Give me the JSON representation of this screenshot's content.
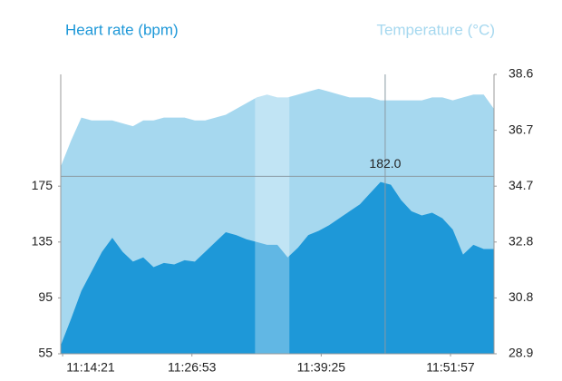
{
  "chart_data": {
    "type": "area",
    "title_left": "Heart rate (bpm)",
    "title_right": "Temperature (°C)",
    "x": [
      "11:14:10",
      "11:15:10",
      "11:16:10",
      "11:17:10",
      "11:18:10",
      "11:19:10",
      "11:20:10",
      "11:21:10",
      "11:22:10",
      "11:23:10",
      "11:24:10",
      "11:25:10",
      "11:26:10",
      "11:27:10",
      "11:28:10",
      "11:29:10",
      "11:30:10",
      "11:31:10",
      "11:32:10",
      "11:33:10",
      "11:34:10",
      "11:35:10",
      "11:36:10",
      "11:37:10",
      "11:38:10",
      "11:39:10",
      "11:40:10",
      "11:41:10",
      "11:42:10",
      "11:43:10",
      "11:44:10",
      "11:45:10",
      "11:46:10",
      "11:47:10",
      "11:48:10",
      "11:49:10",
      "11:50:10",
      "11:51:10",
      "11:52:10",
      "11:53:10",
      "11:54:10",
      "11:55:10",
      "11:56:10"
    ],
    "series": [
      {
        "name": "Heart rate",
        "color": "#1e98d8",
        "axis": "y",
        "values": [
          61,
          80,
          100,
          114,
          128,
          138,
          128,
          121,
          124,
          117,
          120,
          119,
          122,
          121,
          128,
          135,
          142,
          140,
          137,
          135,
          133,
          133,
          124,
          131,
          140,
          143,
          147,
          152,
          157,
          162,
          170,
          178,
          176,
          165,
          157,
          154,
          156,
          152,
          144,
          126,
          133,
          130,
          130
        ]
      },
      {
        "name": "Temperature",
        "color": "#a6d8ef",
        "axis": "y2",
        "values": [
          35.4,
          36.3,
          37.1,
          37.0,
          37.0,
          37.0,
          36.9,
          36.8,
          37.0,
          37.0,
          37.1,
          37.1,
          37.1,
          37.0,
          37.0,
          37.1,
          37.2,
          37.4,
          37.6,
          37.8,
          37.9,
          37.8,
          37.8,
          37.9,
          38.0,
          38.1,
          38.0,
          37.9,
          37.8,
          37.8,
          37.8,
          37.7,
          37.7,
          37.7,
          37.7,
          37.7,
          37.8,
          37.8,
          37.7,
          37.8,
          37.9,
          37.9,
          37.4
        ]
      }
    ],
    "xlim": [
      "11:14:10",
      "11:56:10"
    ],
    "xticks": [
      "11:14:21",
      "11:26:53",
      "11:39:25",
      "11:51:57"
    ],
    "ylim": [
      55,
      255
    ],
    "yticks": [
      55,
      95,
      135,
      175
    ],
    "y2lim": [
      28.9,
      38.6
    ],
    "y2ticks": [
      28.9,
      {
        "value": 30.84,
        "label": "30.8"
      },
      {
        "value": 32.78,
        "label": "32.8"
      },
      {
        "value": 34.72,
        "label": "34.7"
      },
      {
        "value": 36.66,
        "label": "36.7"
      },
      38.6
    ],
    "highlight": [
      "11:33:00",
      "11:36:20"
    ],
    "crosshair": {
      "x": "11:45:37",
      "value": 182,
      "label": "182.0"
    },
    "title_left_color": "#1e98d8",
    "title_right_color": "#a6d8ef"
  }
}
